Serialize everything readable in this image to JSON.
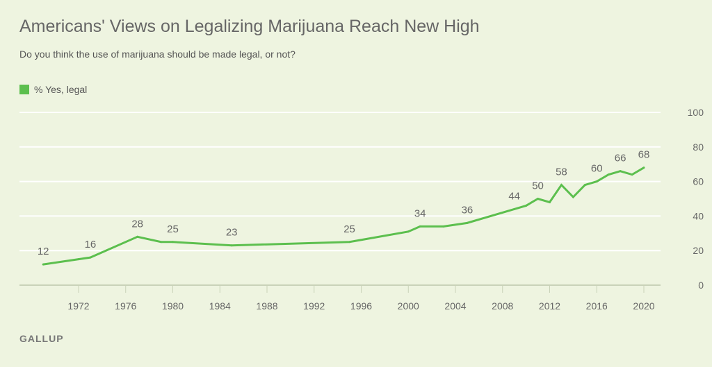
{
  "chart_data": {
    "type": "line",
    "title": "Americans' Views on Legalizing Marijuana Reach New High",
    "subtitle": "Do you think the use of marijuana should be made legal, or not?",
    "legend": [
      "% Yes, legal"
    ],
    "legend_position": "top-left",
    "color": "#5cbf4e",
    "grid": true,
    "xlim": [
      1968,
      2022
    ],
    "ylim": [
      0,
      100
    ],
    "yticks": [
      0,
      20,
      40,
      60,
      80,
      100
    ],
    "xticks": [
      1972,
      1976,
      1980,
      1984,
      1988,
      1992,
      1996,
      2000,
      2004,
      2008,
      2012,
      2016,
      2020
    ],
    "series": [
      {
        "name": "% Yes, legal",
        "points": [
          {
            "x": 1969,
            "y": 12,
            "label": true
          },
          {
            "x": 1972,
            "y": 15
          },
          {
            "x": 1973,
            "y": 16,
            "label": true
          },
          {
            "x": 1977,
            "y": 28,
            "label": true
          },
          {
            "x": 1979,
            "y": 25
          },
          {
            "x": 1980,
            "y": 25,
            "label": true
          },
          {
            "x": 1985,
            "y": 23,
            "label": true
          },
          {
            "x": 1995,
            "y": 25,
            "label": true
          },
          {
            "x": 2000,
            "y": 31
          },
          {
            "x": 2001,
            "y": 34,
            "label": true
          },
          {
            "x": 2003,
            "y": 34
          },
          {
            "x": 2005,
            "y": 36,
            "label": true
          },
          {
            "x": 2009,
            "y": 44,
            "label": true
          },
          {
            "x": 2010,
            "y": 46
          },
          {
            "x": 2011,
            "y": 50,
            "label": true
          },
          {
            "x": 2012,
            "y": 48
          },
          {
            "x": 2013,
            "y": 58,
            "label": true
          },
          {
            "x": 2014,
            "y": 51
          },
          {
            "x": 2015,
            "y": 58
          },
          {
            "x": 2016,
            "y": 60,
            "label": true
          },
          {
            "x": 2017,
            "y": 64
          },
          {
            "x": 2018,
            "y": 66,
            "label": true
          },
          {
            "x": 2019,
            "y": 64
          },
          {
            "x": 2020,
            "y": 68,
            "label": true
          }
        ]
      }
    ]
  },
  "brand": "GALLUP"
}
